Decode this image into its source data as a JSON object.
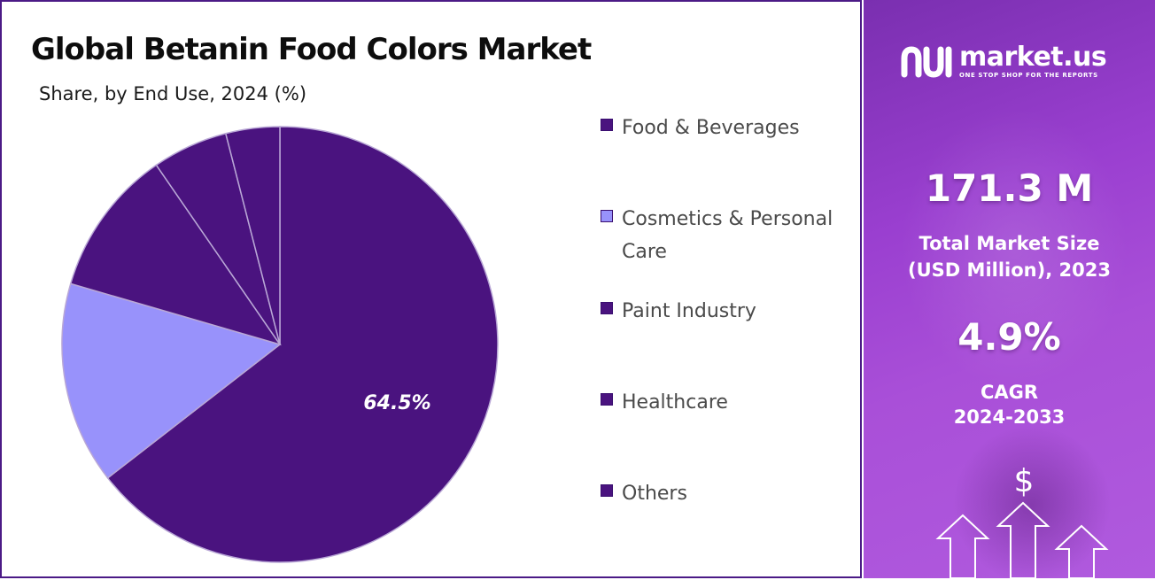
{
  "title": "Global Betanin Food Colors Market",
  "subtitle": "Share, by End Use, 2024 (%)",
  "colors": {
    "dark_purple": "#4a137f",
    "light_purple": "#9892fb",
    "panel_gradient_start": "#7a2fb0",
    "panel_gradient_end": "#b05ade"
  },
  "chart_data": {
    "type": "pie",
    "title": "Global Betanin Food Colors Market",
    "subtitle": "Share, by End Use, 2024 (%)",
    "slices": [
      {
        "name": "Food & Beverages",
        "value": 64.5,
        "label": "64.5%",
        "color": "#4a137f"
      },
      {
        "name": "Cosmetics & Personal Care",
        "value": 15.0,
        "label": "",
        "color": "#9892fb"
      },
      {
        "name": "Paint Industry",
        "value": 10.9,
        "label": "",
        "color": "#4a137f"
      },
      {
        "name": "Healthcare",
        "value": 5.6,
        "label": "",
        "color": "#4a137f"
      },
      {
        "name": "Others",
        "value": 4.0,
        "label": "",
        "color": "#4a137f"
      }
    ],
    "legend_position": "right"
  },
  "legend": {
    "items": [
      {
        "label": "Food & Beverages",
        "color": "#4a137f"
      },
      {
        "label": "Cosmetics & Personal Care",
        "color": "#9892fb"
      },
      {
        "label": "Paint Industry",
        "color": "#4a137f"
      },
      {
        "label": "Healthcare",
        "color": "#4a137f"
      },
      {
        "label": "Others",
        "color": "#4a137f"
      }
    ]
  },
  "sidebar": {
    "brand_name": "market.us",
    "brand_tagline": "ONE STOP SHOP FOR THE REPORTS",
    "market_size_value": "171.3 M",
    "market_size_label_line1": "Total Market Size",
    "market_size_label_line2": "(USD Million), 2023",
    "cagr_value": "4.9%",
    "cagr_label_line1": "CAGR",
    "cagr_label_line2": "2024-2033",
    "dollar_symbol": "$",
    "icons": [
      "market-us-logo-icon",
      "dollar-icon",
      "up-arrow-icon"
    ]
  }
}
